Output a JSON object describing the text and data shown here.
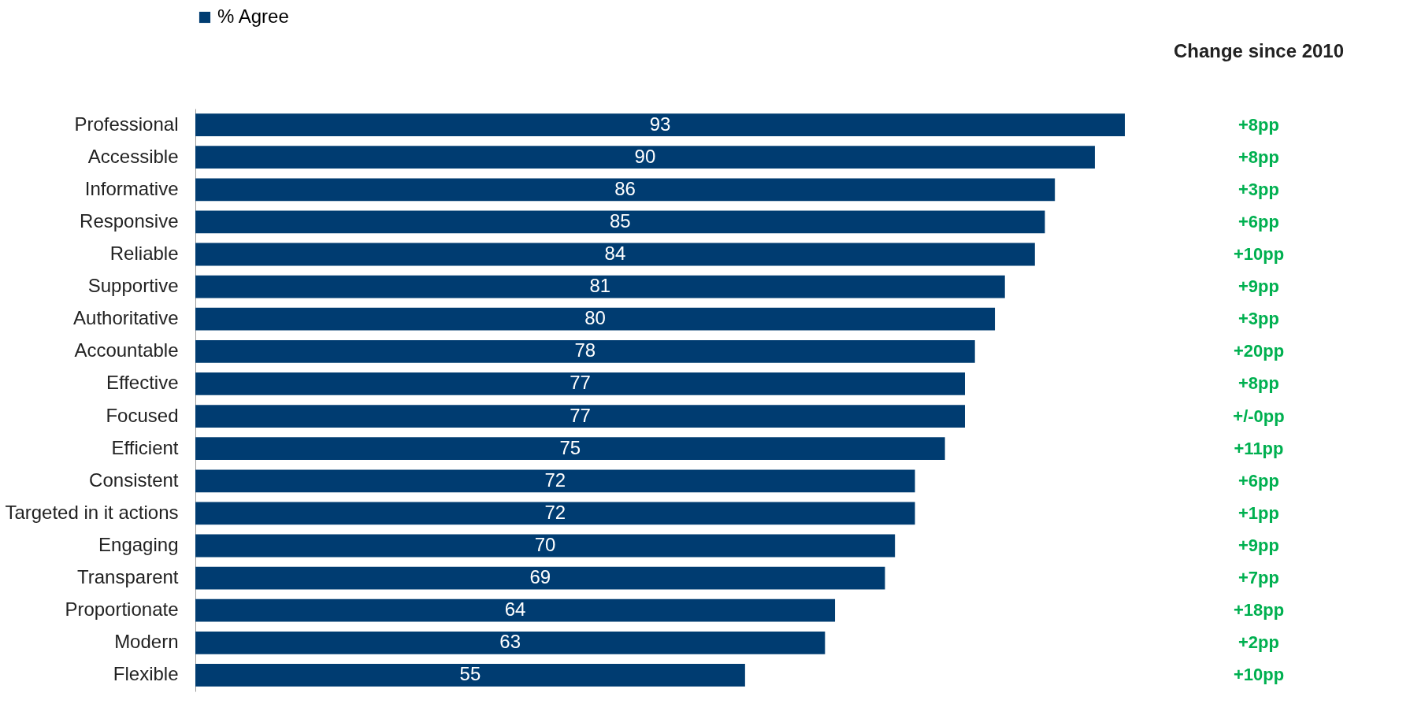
{
  "chart_data": {
    "type": "bar",
    "orientation": "horizontal",
    "categories": [
      "Professional",
      "Accessible",
      "Informative",
      "Responsive",
      "Reliable",
      "Supportive",
      "Authoritative",
      "Accountable",
      "Effective",
      "Focused",
      "Efficient",
      "Consistent",
      "Targeted in it actions",
      "Engaging",
      "Transparent",
      "Proportionate",
      "Modern",
      "Flexible"
    ],
    "series": [
      {
        "name": "% Agree",
        "color": "#003c71",
        "values": [
          93,
          90,
          86,
          85,
          84,
          81,
          80,
          78,
          77,
          77,
          75,
          72,
          72,
          70,
          69,
          64,
          63,
          55
        ]
      }
    ],
    "tick_labels": "y",
    "data_labels": true,
    "legend": "top",
    "grid": false,
    "annotations": [
      "Change since 2010",
      "+8pp",
      "+8pp",
      "+3pp",
      "+6pp",
      "+10pp",
      "+9pp",
      "+3pp",
      "+20pp",
      "+8pp",
      "+/-0pp",
      "+11pp",
      "+6pp",
      "+1pp",
      "+9pp",
      "+7pp",
      "+18pp",
      "+2pp",
      "+10pp"
    ]
  }
}
